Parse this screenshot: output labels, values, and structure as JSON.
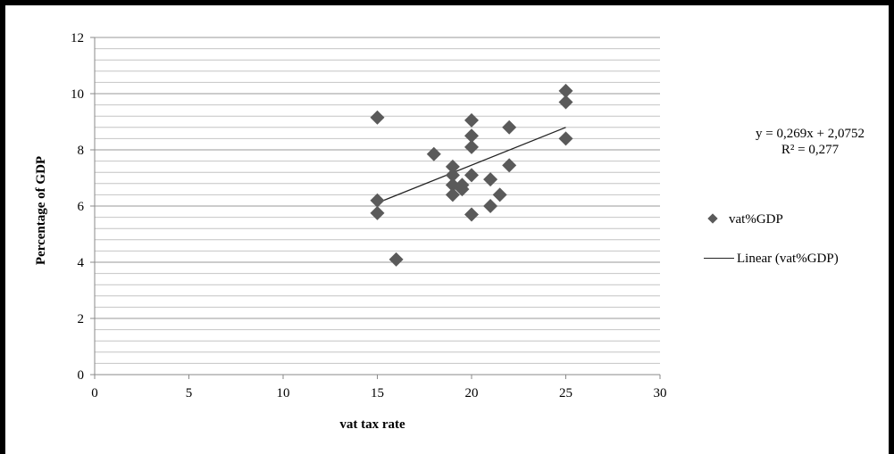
{
  "chart_data": {
    "type": "scatter",
    "title": "",
    "xlabel": "vat tax rate",
    "ylabel": "Percentage of GDP",
    "xlim": [
      0,
      30
    ],
    "ylim": [
      0,
      12
    ],
    "xticks": [
      "0",
      "5",
      "10",
      "15",
      "20",
      "25",
      "30"
    ],
    "yticks": [
      "0",
      "2",
      "4",
      "6",
      "8",
      "10",
      "12"
    ],
    "grid": "horizontal major and minor",
    "legend_position": "right",
    "series": [
      {
        "name": "vat%GDP",
        "marker": "diamond",
        "color": "#5a5a5a",
        "points": [
          [
            15,
            9.15
          ],
          [
            15,
            6.2
          ],
          [
            15,
            5.75
          ],
          [
            16,
            4.1
          ],
          [
            18,
            7.85
          ],
          [
            19,
            7.4
          ],
          [
            19,
            7.1
          ],
          [
            19,
            6.75
          ],
          [
            19,
            6.4
          ],
          [
            19.5,
            6.75
          ],
          [
            19.5,
            6.6
          ],
          [
            20,
            9.05
          ],
          [
            20,
            8.5
          ],
          [
            20,
            8.1
          ],
          [
            20,
            7.1
          ],
          [
            20,
            5.7
          ],
          [
            21,
            6.95
          ],
          [
            21,
            6.0
          ],
          [
            21.5,
            6.4
          ],
          [
            22,
            8.8
          ],
          [
            22,
            7.45
          ],
          [
            25,
            10.1
          ],
          [
            25,
            9.7
          ],
          [
            25,
            8.4
          ]
        ]
      },
      {
        "name": "Linear (vat%GDP)",
        "type": "trendline",
        "slope": 0.269,
        "intercept": 2.0752,
        "x_range": [
          15,
          25
        ],
        "color": "#222222"
      }
    ],
    "annotations": {
      "equation": "y = 0,269x + 2,0752",
      "r_squared": "R² = 0,277"
    }
  }
}
